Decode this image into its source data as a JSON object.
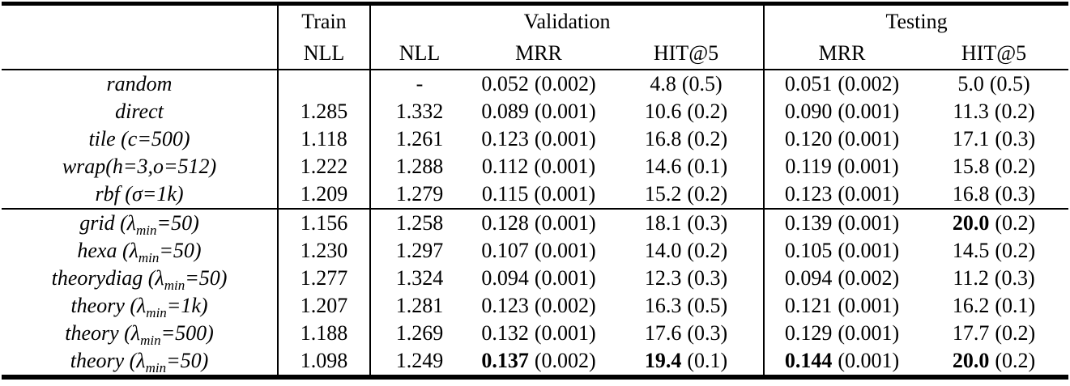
{
  "colors": {
    "background": "#ffffff",
    "text": "#000000",
    "rule": "#000000"
  },
  "table": {
    "header": {
      "train": "Train",
      "validation": "Validation",
      "testing": "Testing",
      "nll": "NLL",
      "mrr": "MRR",
      "hit5": "HIT@5"
    },
    "rows": [
      {
        "method": {
          "pre": "random",
          "sub": "",
          "post": ""
        },
        "cells": [
          {
            "v": ""
          },
          {
            "v": "-"
          },
          {
            "v": "0.052",
            "s": "(0.002)"
          },
          {
            "v": "4.8",
            "s": "(0.5)"
          },
          {
            "v": "0.051",
            "s": "(0.002)"
          },
          {
            "v": "5.0",
            "s": "(0.5)"
          }
        ]
      },
      {
        "method": {
          "pre": "direct",
          "sub": "",
          "post": ""
        },
        "cells": [
          {
            "v": "1.285"
          },
          {
            "v": "1.332"
          },
          {
            "v": "0.089",
            "s": "(0.001)"
          },
          {
            "v": "10.6",
            "s": "(0.2)"
          },
          {
            "v": "0.090",
            "s": "(0.001)"
          },
          {
            "v": "11.3",
            "s": "(0.2)"
          }
        ]
      },
      {
        "method": {
          "pre": "tile (c=500)",
          "sub": "",
          "post": ""
        },
        "cells": [
          {
            "v": "1.118"
          },
          {
            "v": "1.261"
          },
          {
            "v": "0.123",
            "s": "(0.001)"
          },
          {
            "v": "16.8",
            "s": "(0.2)"
          },
          {
            "v": "0.120",
            "s": "(0.001)"
          },
          {
            "v": "17.1",
            "s": "(0.3)"
          }
        ]
      },
      {
        "method": {
          "pre": "wrap(h=3,o=512)",
          "sub": "",
          "post": ""
        },
        "cells": [
          {
            "v": "1.222"
          },
          {
            "v": "1.288"
          },
          {
            "v": "0.112",
            "s": "(0.001)"
          },
          {
            "v": "14.6",
            "s": "(0.1)"
          },
          {
            "v": "0.119",
            "s": "(0.001)"
          },
          {
            "v": "15.8",
            "s": "(0.2)"
          }
        ]
      },
      {
        "method": {
          "pre": "rbf (σ=1k)",
          "sub": "",
          "post": ""
        },
        "cells": [
          {
            "v": "1.209"
          },
          {
            "v": "1.279"
          },
          {
            "v": "0.115",
            "s": "(0.001)"
          },
          {
            "v": "15.2",
            "s": "(0.2)"
          },
          {
            "v": "0.123",
            "s": "(0.001)"
          },
          {
            "v": "16.8",
            "s": "(0.3)"
          }
        ]
      },
      {
        "group_start": true,
        "method": {
          "pre": "grid (λ",
          "sub": "min",
          "post": "=50)"
        },
        "cells": [
          {
            "v": "1.156"
          },
          {
            "v": "1.258"
          },
          {
            "v": "0.128",
            "s": "(0.001)"
          },
          {
            "v": "18.1",
            "s": "(0.3)"
          },
          {
            "v": "0.139",
            "s": "(0.001)"
          },
          {
            "v": "20.0",
            "s": "(0.2)",
            "b": true
          }
        ]
      },
      {
        "method": {
          "pre": "hexa (λ",
          "sub": "min",
          "post": "=50)"
        },
        "cells": [
          {
            "v": "1.230"
          },
          {
            "v": "1.297"
          },
          {
            "v": "0.107",
            "s": "(0.001)"
          },
          {
            "v": "14.0",
            "s": "(0.2)"
          },
          {
            "v": "0.105",
            "s": "(0.001)"
          },
          {
            "v": "14.5",
            "s": "(0.2)"
          }
        ]
      },
      {
        "method": {
          "pre": "theorydiag (λ",
          "sub": "min",
          "post": "=50)"
        },
        "cells": [
          {
            "v": "1.277"
          },
          {
            "v": "1.324"
          },
          {
            "v": "0.094",
            "s": "(0.001)"
          },
          {
            "v": "12.3",
            "s": "(0.3)"
          },
          {
            "v": "0.094",
            "s": "(0.002)"
          },
          {
            "v": "11.2",
            "s": "(0.3)"
          }
        ]
      },
      {
        "method": {
          "pre": "theory (λ",
          "sub": "min",
          "post": "=1k)"
        },
        "cells": [
          {
            "v": "1.207"
          },
          {
            "v": "1.281"
          },
          {
            "v": "0.123",
            "s": "(0.002)"
          },
          {
            "v": "16.3",
            "s": "(0.5)"
          },
          {
            "v": "0.121",
            "s": "(0.001)"
          },
          {
            "v": "16.2",
            "s": "(0.1)"
          }
        ]
      },
      {
        "method": {
          "pre": "theory (λ",
          "sub": "min",
          "post": "=500)"
        },
        "cells": [
          {
            "v": "1.188"
          },
          {
            "v": "1.269"
          },
          {
            "v": "0.132",
            "s": "(0.001)"
          },
          {
            "v": "17.6",
            "s": "(0.3)"
          },
          {
            "v": "0.129",
            "s": "(0.001)"
          },
          {
            "v": "17.7",
            "s": "(0.2)"
          }
        ]
      },
      {
        "method": {
          "pre": "theory (λ",
          "sub": "min",
          "post": "=50)"
        },
        "cells": [
          {
            "v": "1.098"
          },
          {
            "v": "1.249"
          },
          {
            "v": "0.137",
            "s": "(0.002)",
            "b": true
          },
          {
            "v": "19.4",
            "s": "(0.1)",
            "b": true
          },
          {
            "v": "0.144",
            "s": "(0.001)",
            "b": true
          },
          {
            "v": "20.0",
            "s": "(0.2)",
            "b": true
          }
        ]
      }
    ]
  }
}
